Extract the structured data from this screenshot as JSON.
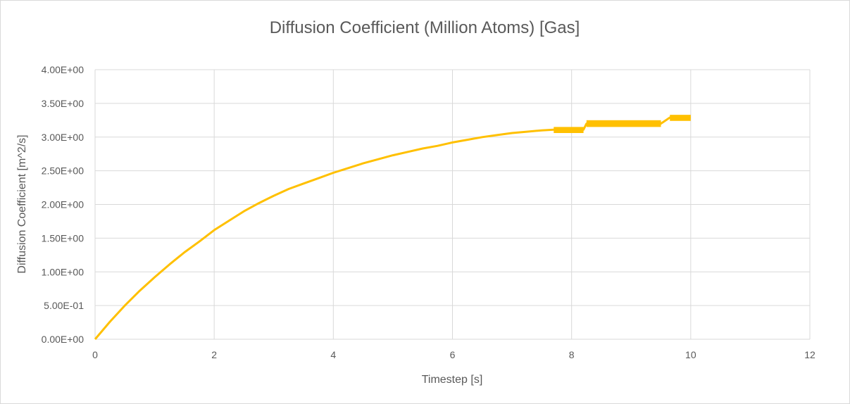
{
  "chart_data": {
    "type": "scatter",
    "title": "Diffusion Coefficient (Million Atoms) [Gas]",
    "xlabel": "Timestep [s]",
    "ylabel": "Diffusion Coefficient [m^2/s]",
    "xlim": [
      0,
      12
    ],
    "ylim": [
      0,
      4
    ],
    "xticks": [
      0,
      2,
      4,
      6,
      8,
      10,
      12
    ],
    "xtick_labels": [
      "0",
      "2",
      "4",
      "6",
      "8",
      "10",
      "12"
    ],
    "yticks": [
      0,
      0.5,
      1,
      1.5,
      2,
      2.5,
      3,
      3.5,
      4
    ],
    "ytick_labels": [
      "0.00E+00",
      "5.00E-01",
      "1.00E+00",
      "1.50E+00",
      "2.00E+00",
      "2.50E+00",
      "3.00E+00",
      "3.50E+00",
      "4.00E+00"
    ],
    "grid": true,
    "legend": "none",
    "series_color": "#FFC000",
    "series": [
      {
        "x": [
          0,
          0.25,
          0.5,
          0.75,
          1,
          1.25,
          1.5,
          1.75,
          2,
          2.25,
          2.5,
          2.75,
          3,
          3.25,
          3.5,
          3.75,
          4,
          4.25,
          4.5,
          4.75,
          5,
          5.25,
          5.5,
          5.75,
          6,
          6.25,
          6.5,
          6.75,
          7,
          7.25,
          7.5,
          7.7,
          8.2,
          8.25,
          9.5,
          9.65,
          10
        ],
        "y": [
          0,
          0.26,
          0.5,
          0.72,
          0.92,
          1.11,
          1.29,
          1.45,
          1.62,
          1.76,
          1.9,
          2.02,
          2.13,
          2.23,
          2.31,
          2.39,
          2.47,
          2.54,
          2.61,
          2.67,
          2.73,
          2.78,
          2.83,
          2.87,
          2.92,
          2.96,
          3.0,
          3.03,
          3.06,
          3.08,
          3.1,
          3.11,
          3.11,
          3.2,
          3.2,
          3.29,
          3.29
        ]
      }
    ],
    "noise_bands": [
      {
        "x": [
          7.7,
          8.2
        ],
        "y": [
          3.06,
          3.15
        ]
      },
      {
        "x": [
          8.25,
          9.5
        ],
        "y": [
          3.15,
          3.25
        ]
      },
      {
        "x": [
          9.65,
          10
        ],
        "y": [
          3.24,
          3.33
        ]
      }
    ]
  }
}
